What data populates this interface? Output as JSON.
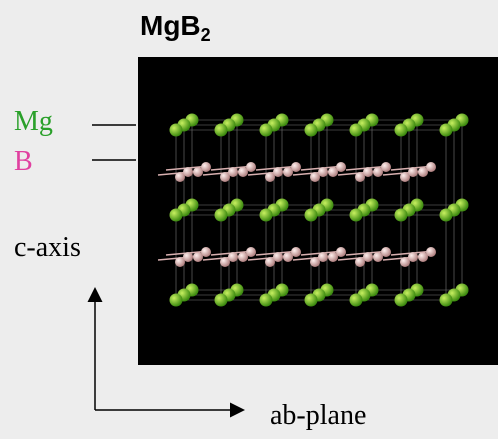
{
  "title": {
    "text": "MgB",
    "subscript": "2"
  },
  "labels": {
    "mg": "Mg",
    "b": "B"
  },
  "axes": {
    "vertical": "c-axis",
    "horizontal": "ab-plane"
  }
}
